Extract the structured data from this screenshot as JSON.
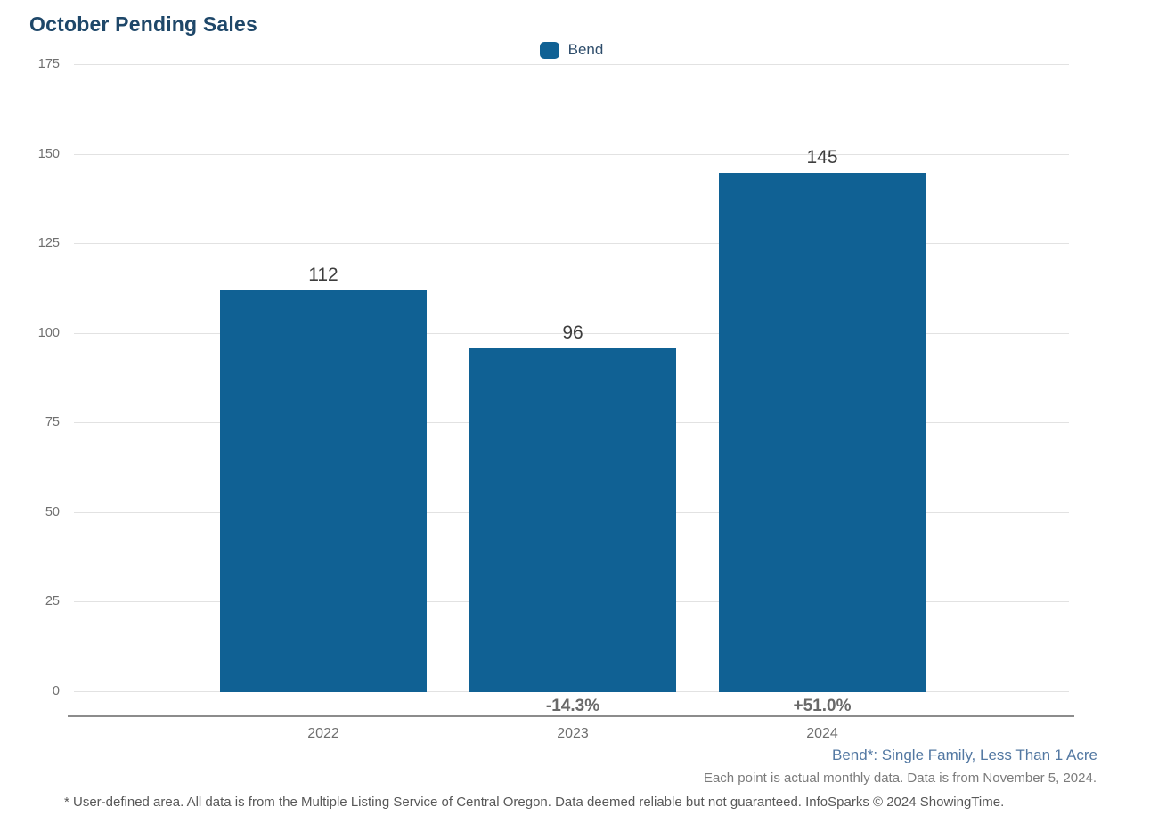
{
  "title": "October Pending Sales",
  "legend": {
    "label": "Bend"
  },
  "chart_data": {
    "type": "bar",
    "title": "October Pending Sales",
    "series_name": "Bend",
    "categories": [
      "2022",
      "2023",
      "2024"
    ],
    "values": [
      112,
      96,
      145
    ],
    "change_labels": [
      "",
      "-14.3%",
      "+51.0%"
    ],
    "y_ticks": [
      0,
      25,
      50,
      75,
      100,
      125,
      150,
      175
    ],
    "ylim": [
      0,
      175
    ],
    "grid": true,
    "legend_position": "top-center",
    "bar_color": "#106194"
  },
  "footnotes": {
    "series_note": "Bend*: Single Family, Less Than 1 Acre",
    "data_note": "Each point is actual monthly data. Data is from November 5, 2024.",
    "disclaimer": "* User-defined area. All data is from the Multiple Listing Service of Central Oregon. Data deemed reliable but not guaranteed. InfoSparks © 2024 ShowingTime."
  },
  "colors": {
    "bar": "#106194",
    "title_text": "#1e4769",
    "footnote_link": "#5378a2"
  }
}
